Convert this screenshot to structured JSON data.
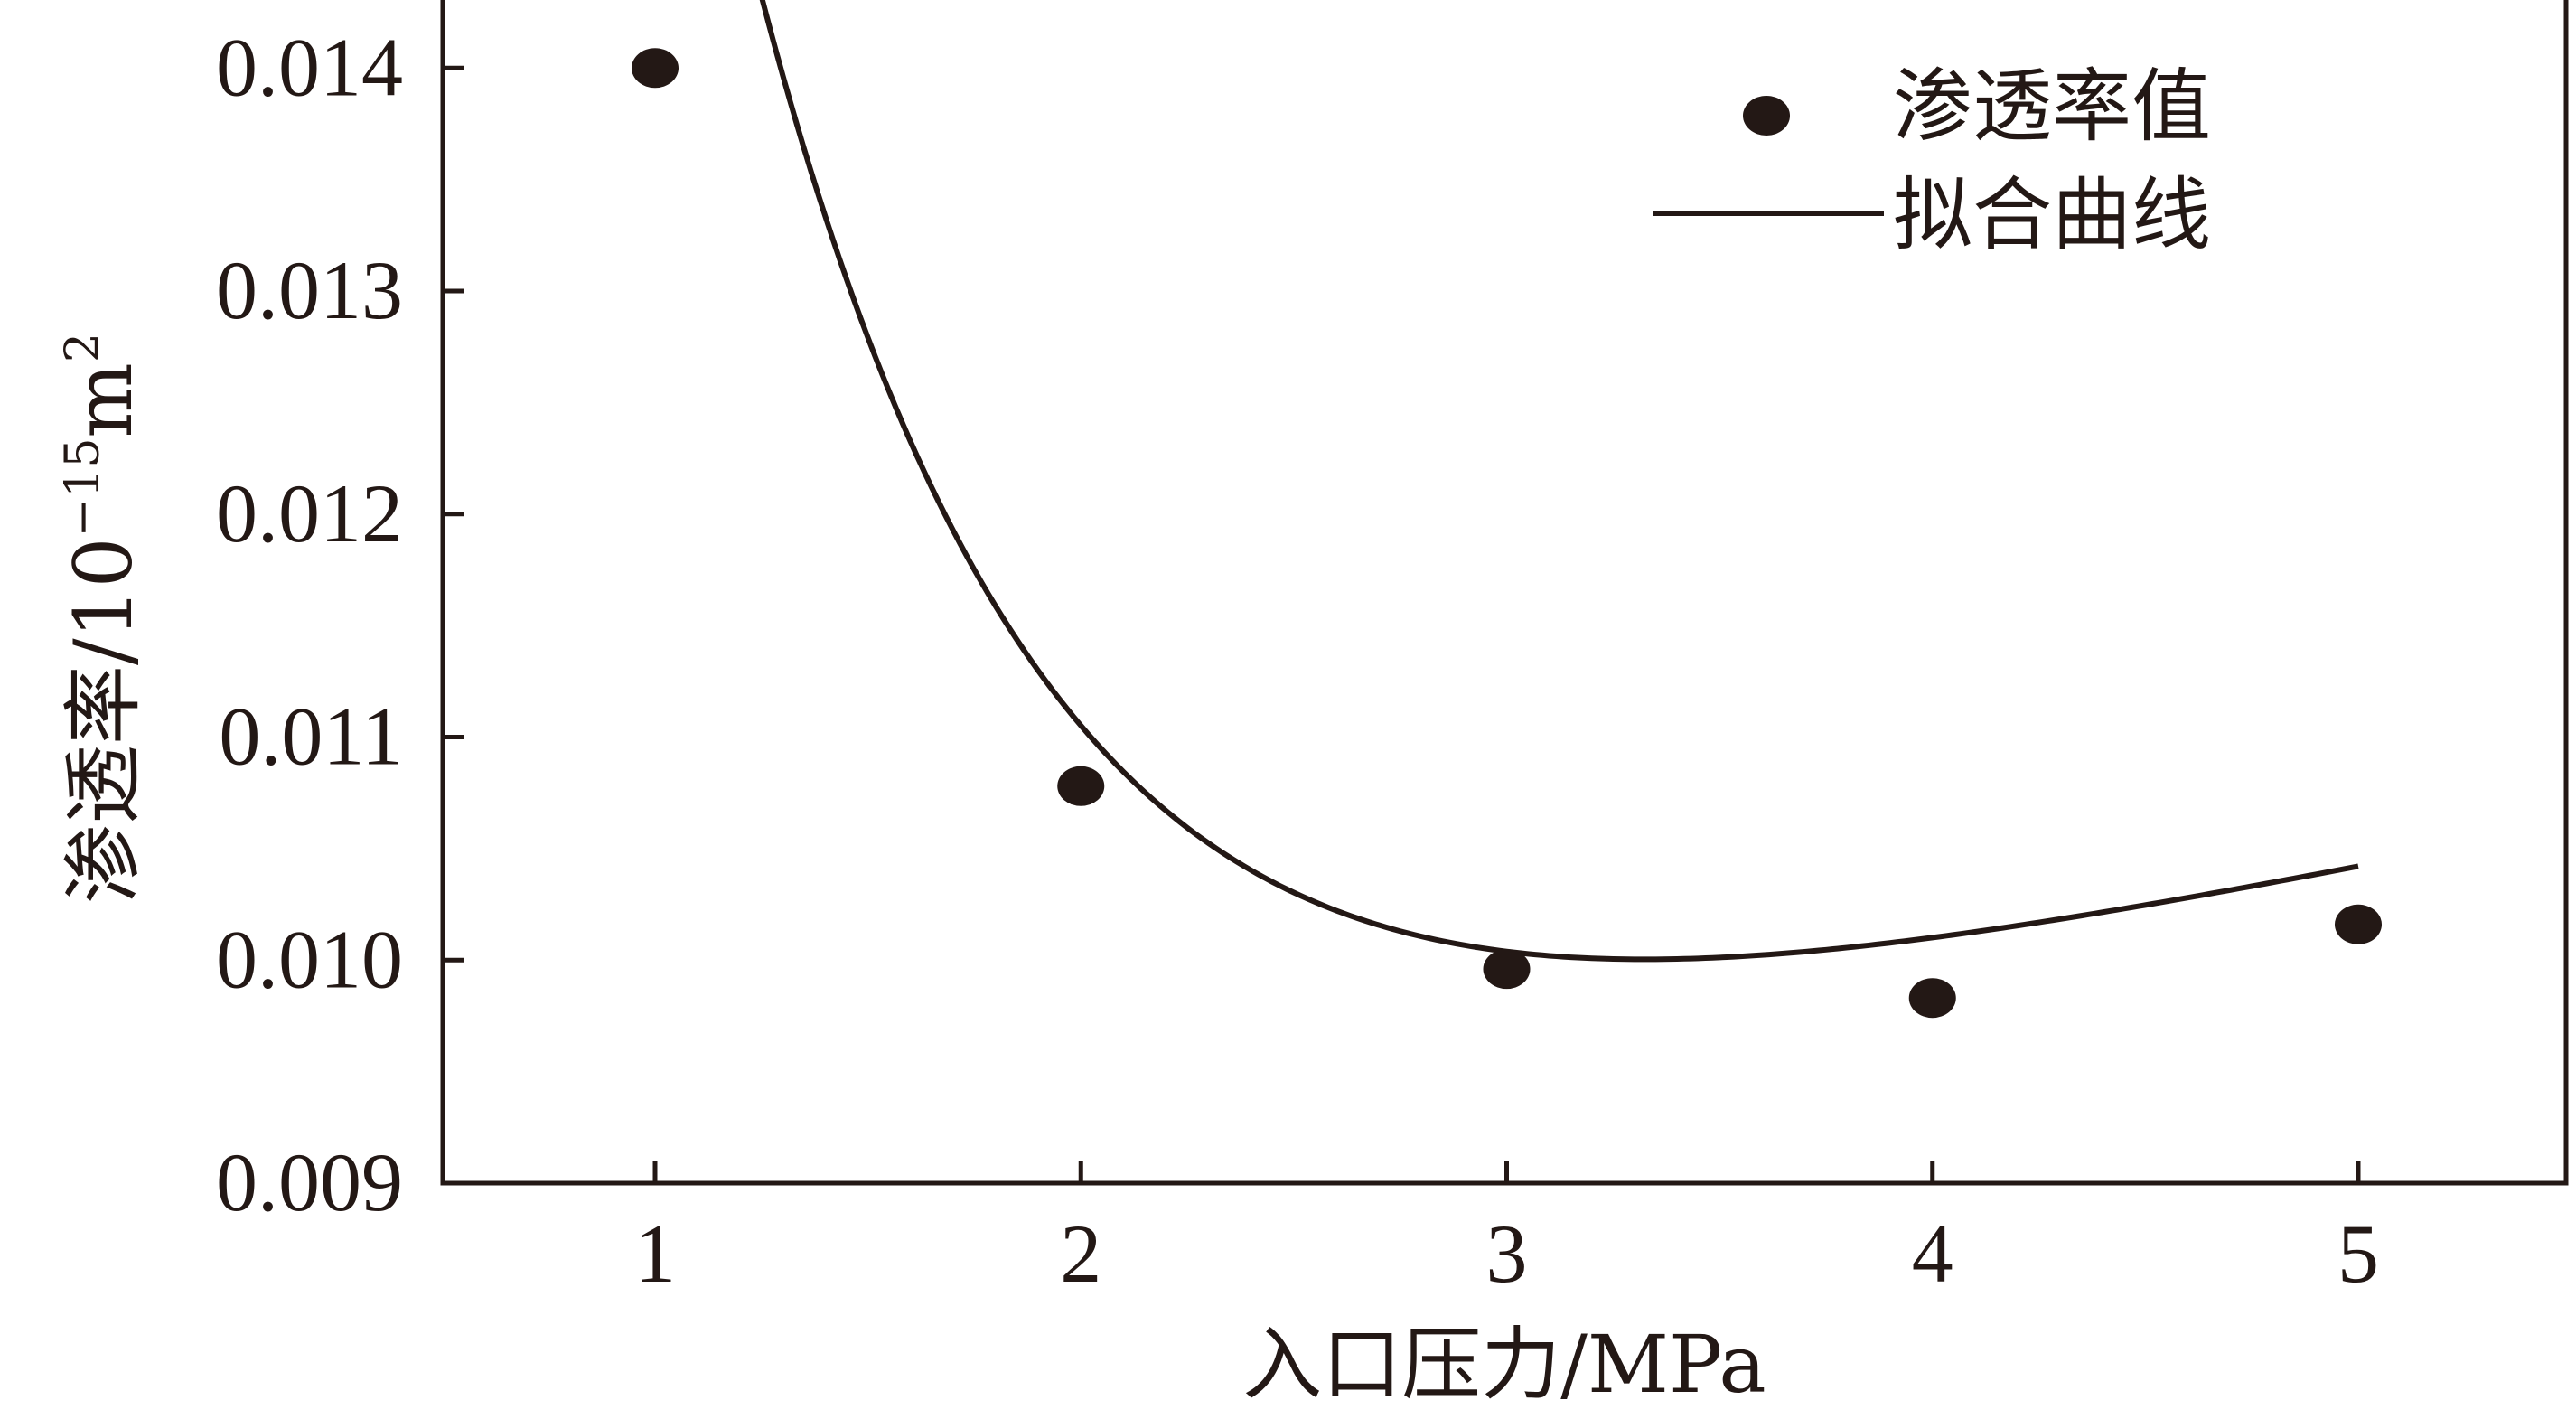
{
  "chart_data": {
    "type": "scatter",
    "xlabel": "入口压力/MPa",
    "ylabel": {
      "prefix": "渗透率/10",
      "sup": "−15",
      "unit": "m",
      "unit_sup": "2"
    },
    "xlim": [
      0.5,
      5.5
    ],
    "ylim": [
      0.009,
      0.0141
    ],
    "xticks": [
      1,
      2,
      3,
      4,
      5
    ],
    "xtick_labels": [
      "1",
      "2",
      "3",
      "4",
      "5"
    ],
    "yticks": [
      0.009,
      0.01,
      0.011,
      0.012,
      0.013,
      0.014
    ],
    "ytick_labels": [
      "0.009",
      "0.010",
      "0.011",
      "0.012",
      "0.013",
      "0.014"
    ],
    "grid": false,
    "legend_position": "top-right",
    "series": [
      {
        "name": "渗透率值",
        "kind": "points",
        "x": [
          1,
          2,
          3,
          4,
          5
        ],
        "y": [
          0.014,
          0.01078,
          0.00996,
          0.00983,
          0.01016
        ]
      },
      {
        "name": "拟合曲线",
        "kind": "fit-curve",
        "model": "a*exp(-x/t)+b*x+c",
        "params": {
          "a": 0.03238,
          "t": 0.7,
          "b": 0.000401,
          "c": 0.00839
        }
      }
    ],
    "colors": {
      "ink": "#231815",
      "background": "#ffffff"
    }
  }
}
